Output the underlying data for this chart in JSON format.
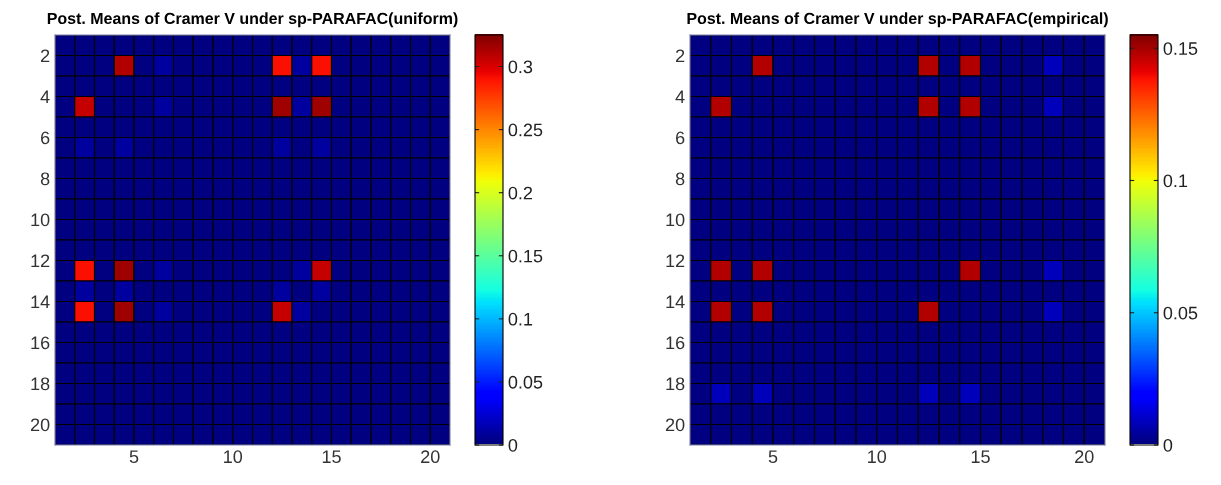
{
  "chart_data": [
    {
      "type": "heatmap",
      "title": "Post. Means of Cramer V under sp-PARAFAC(uniform)",
      "xlim": [
        1,
        21
      ],
      "xticks": [
        5,
        10,
        15,
        20
      ],
      "ylim": [
        21,
        1
      ],
      "yticks": [
        2,
        4,
        6,
        8,
        10,
        12,
        14,
        16,
        18,
        20
      ],
      "clim": [
        0,
        0.325
      ],
      "cticks": [
        0,
        0.05,
        0.1,
        0.15,
        0.2,
        0.25,
        0.3
      ],
      "cells": [
        [
          0,
          0,
          0,
          0,
          0,
          0,
          0,
          0,
          0,
          0,
          0,
          0,
          0,
          0,
          0,
          0,
          0,
          0,
          0,
          0
        ],
        [
          0,
          0,
          0,
          0.31,
          0,
          0.01,
          0,
          0,
          0,
          0,
          0,
          0.29,
          0.01,
          0.29,
          0,
          0,
          0,
          0,
          0,
          0
        ],
        [
          0,
          0,
          0,
          0,
          0,
          0,
          0,
          0,
          0,
          0,
          0,
          0,
          0,
          0,
          0,
          0,
          0,
          0,
          0,
          0
        ],
        [
          0,
          0.305,
          0,
          0,
          0,
          0.01,
          0,
          0,
          0,
          0,
          0,
          0.315,
          0.01,
          0.315,
          0,
          0,
          0,
          0,
          0,
          0
        ],
        [
          0,
          0,
          0,
          0,
          0,
          0,
          0,
          0,
          0,
          0,
          0,
          0,
          0,
          0,
          0,
          0,
          0,
          0,
          0,
          0
        ],
        [
          0,
          0.01,
          0,
          0.01,
          0,
          0,
          0,
          0,
          0,
          0,
          0,
          0.01,
          0,
          0.01,
          0,
          0,
          0,
          0,
          0,
          0
        ],
        [
          0,
          0,
          0,
          0,
          0,
          0,
          0,
          0,
          0,
          0,
          0,
          0,
          0,
          0,
          0,
          0,
          0,
          0,
          0,
          0
        ],
        [
          0,
          0,
          0,
          0,
          0,
          0,
          0,
          0,
          0,
          0,
          0,
          0,
          0,
          0,
          0,
          0,
          0,
          0,
          0,
          0
        ],
        [
          0,
          0,
          0,
          0,
          0,
          0,
          0,
          0,
          0,
          0,
          0,
          0,
          0,
          0,
          0,
          0,
          0,
          0,
          0,
          0
        ],
        [
          0,
          0,
          0,
          0,
          0,
          0,
          0,
          0,
          0,
          0,
          0,
          0,
          0,
          0,
          0,
          0,
          0,
          0,
          0,
          0
        ],
        [
          0,
          0,
          0,
          0,
          0,
          0,
          0,
          0,
          0,
          0,
          0,
          0,
          0,
          0,
          0,
          0,
          0,
          0,
          0,
          0
        ],
        [
          0,
          0.29,
          0,
          0.315,
          0,
          0.01,
          0,
          0,
          0,
          0,
          0,
          0,
          0.01,
          0.305,
          0,
          0,
          0,
          0,
          0,
          0
        ],
        [
          0,
          0.01,
          0,
          0.01,
          0,
          0,
          0,
          0,
          0,
          0,
          0,
          0.01,
          0,
          0.01,
          0,
          0,
          0,
          0,
          0,
          0
        ],
        [
          0,
          0.29,
          0,
          0.315,
          0,
          0.01,
          0,
          0,
          0,
          0,
          0,
          0.305,
          0.01,
          0,
          0,
          0,
          0,
          0,
          0,
          0
        ],
        [
          0,
          0,
          0,
          0,
          0,
          0,
          0,
          0,
          0,
          0,
          0,
          0,
          0,
          0,
          0,
          0,
          0,
          0,
          0,
          0
        ],
        [
          0,
          0,
          0,
          0,
          0,
          0,
          0,
          0,
          0,
          0,
          0,
          0,
          0,
          0,
          0,
          0,
          0,
          0,
          0,
          0
        ],
        [
          0,
          0,
          0,
          0,
          0,
          0,
          0,
          0,
          0,
          0,
          0,
          0,
          0,
          0,
          0,
          0,
          0,
          0,
          0,
          0
        ],
        [
          0,
          0,
          0,
          0,
          0,
          0,
          0,
          0,
          0,
          0,
          0,
          0,
          0,
          0,
          0,
          0,
          0,
          0,
          0,
          0
        ],
        [
          0,
          0,
          0,
          0,
          0,
          0,
          0,
          0,
          0,
          0,
          0,
          0,
          0,
          0,
          0,
          0,
          0,
          0,
          0,
          0
        ],
        [
          0,
          0,
          0,
          0,
          0,
          0,
          0,
          0,
          0,
          0,
          0,
          0,
          0,
          0,
          0,
          0,
          0,
          0,
          0,
          0
        ]
      ]
    },
    {
      "type": "heatmap",
      "title": "Post. Means of Cramer V under sp-PARAFAC(empirical)",
      "xlim": [
        1,
        21
      ],
      "xticks": [
        5,
        10,
        15,
        20
      ],
      "ylim": [
        21,
        1
      ],
      "yticks": [
        2,
        4,
        6,
        8,
        10,
        12,
        14,
        16,
        18,
        20
      ],
      "clim": [
        0,
        0.155
      ],
      "cticks": [
        0,
        0.05,
        0.1,
        0.15
      ],
      "cells": [
        [
          0,
          0,
          0,
          0,
          0,
          0,
          0,
          0,
          0,
          0,
          0,
          0,
          0,
          0,
          0,
          0,
          0,
          0,
          0,
          0
        ],
        [
          0,
          0,
          0,
          0.148,
          0,
          0,
          0,
          0,
          0,
          0,
          0,
          0.148,
          0,
          0.148,
          0,
          0,
          0,
          0.008,
          0,
          0
        ],
        [
          0,
          0,
          0,
          0,
          0,
          0,
          0,
          0,
          0,
          0,
          0,
          0,
          0,
          0,
          0,
          0,
          0,
          0,
          0,
          0
        ],
        [
          0,
          0.148,
          0,
          0,
          0,
          0,
          0,
          0,
          0,
          0,
          0,
          0.148,
          0,
          0.148,
          0,
          0,
          0,
          0.008,
          0,
          0
        ],
        [
          0,
          0,
          0,
          0,
          0,
          0,
          0,
          0,
          0,
          0,
          0,
          0,
          0,
          0,
          0,
          0,
          0,
          0,
          0,
          0
        ],
        [
          0,
          0,
          0,
          0,
          0,
          0,
          0,
          0,
          0,
          0,
          0,
          0,
          0,
          0,
          0,
          0,
          0,
          0,
          0,
          0
        ],
        [
          0,
          0,
          0,
          0,
          0,
          0,
          0,
          0,
          0,
          0,
          0,
          0,
          0,
          0,
          0,
          0,
          0,
          0,
          0,
          0
        ],
        [
          0,
          0,
          0,
          0,
          0,
          0,
          0,
          0,
          0,
          0,
          0,
          0,
          0,
          0,
          0,
          0,
          0,
          0,
          0,
          0
        ],
        [
          0,
          0,
          0,
          0,
          0,
          0,
          0,
          0,
          0,
          0,
          0,
          0,
          0,
          0,
          0,
          0,
          0,
          0,
          0,
          0
        ],
        [
          0,
          0,
          0,
          0,
          0,
          0,
          0,
          0,
          0,
          0,
          0,
          0,
          0,
          0,
          0,
          0,
          0,
          0,
          0,
          0
        ],
        [
          0,
          0,
          0,
          0,
          0,
          0,
          0,
          0,
          0,
          0,
          0,
          0,
          0,
          0,
          0,
          0,
          0,
          0,
          0,
          0
        ],
        [
          0,
          0.148,
          0,
          0.148,
          0,
          0,
          0,
          0,
          0,
          0,
          0,
          0,
          0,
          0.148,
          0,
          0,
          0,
          0.008,
          0,
          0
        ],
        [
          0,
          0,
          0,
          0,
          0,
          0,
          0,
          0,
          0,
          0,
          0,
          0,
          0,
          0,
          0,
          0,
          0,
          0,
          0,
          0
        ],
        [
          0,
          0.148,
          0,
          0.148,
          0,
          0,
          0,
          0,
          0,
          0,
          0,
          0.148,
          0,
          0,
          0,
          0,
          0,
          0.008,
          0,
          0
        ],
        [
          0,
          0,
          0,
          0,
          0,
          0,
          0,
          0,
          0,
          0,
          0,
          0,
          0,
          0,
          0,
          0,
          0,
          0,
          0,
          0
        ],
        [
          0,
          0,
          0,
          0,
          0,
          0,
          0,
          0,
          0,
          0,
          0,
          0,
          0,
          0,
          0,
          0,
          0,
          0,
          0,
          0
        ],
        [
          0,
          0,
          0,
          0,
          0,
          0,
          0,
          0,
          0,
          0,
          0,
          0,
          0,
          0,
          0,
          0,
          0,
          0,
          0,
          0
        ],
        [
          0,
          0.008,
          0,
          0.008,
          0,
          0,
          0,
          0,
          0,
          0,
          0,
          0.008,
          0,
          0.008,
          0,
          0,
          0,
          0,
          0,
          0
        ],
        [
          0,
          0,
          0,
          0,
          0,
          0,
          0,
          0,
          0,
          0,
          0,
          0,
          0,
          0,
          0,
          0,
          0,
          0,
          0,
          0
        ],
        [
          0,
          0,
          0,
          0,
          0,
          0,
          0,
          0,
          0,
          0,
          0,
          0,
          0,
          0,
          0,
          0,
          0,
          0,
          0,
          0
        ]
      ]
    }
  ]
}
